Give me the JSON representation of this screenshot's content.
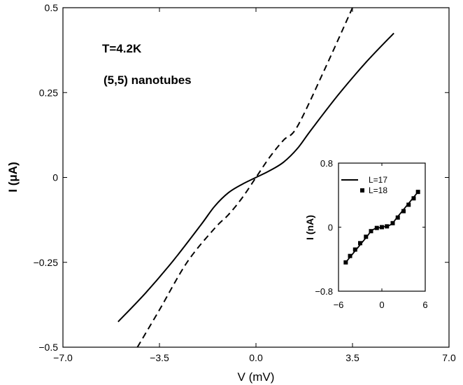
{
  "chart_data": [
    {
      "type": "line",
      "title": "",
      "xlabel": "V (mV)",
      "ylabel": "I (μA)",
      "xlim": [
        -7.0,
        7.0
      ],
      "ylim": [
        -0.5,
        0.5
      ],
      "xticks": [
        "−7.0",
        "−3.5",
        "0.0",
        "3.5",
        "7.0"
      ],
      "xtick_values": [
        -7.0,
        -3.5,
        0.0,
        3.5,
        7.0
      ],
      "yticks": [
        "−0.5",
        "−0.25",
        "0",
        "0.25",
        "0.5"
      ],
      "ytick_values": [
        -0.5,
        -0.25,
        0,
        0.25,
        0.5
      ],
      "grid": false,
      "annotations": [
        "T=4.2K",
        "(5,5) nanotubes"
      ],
      "series": [
        {
          "style": "solid",
          "x": [
            -5.0,
            -4.0,
            -3.0,
            -2.0,
            -1.5,
            -1.0,
            -0.5,
            0.0,
            0.5,
            1.0,
            1.5,
            2.0,
            3.0,
            4.0,
            5.0
          ],
          "y": [
            -0.425,
            -0.34,
            -0.245,
            -0.14,
            -0.085,
            -0.045,
            -0.02,
            0.0,
            0.02,
            0.045,
            0.085,
            0.14,
            0.245,
            0.34,
            0.425
          ]
        },
        {
          "style": "dashed",
          "x": [
            -4.3,
            -3.5,
            -2.5,
            -1.5,
            -1.0,
            -0.5,
            0.0,
            0.5,
            1.0,
            1.5,
            2.5,
            3.5
          ],
          "y": [
            -0.5,
            -0.39,
            -0.25,
            -0.15,
            -0.11,
            -0.06,
            0.0,
            0.06,
            0.11,
            0.15,
            0.32,
            0.5
          ]
        }
      ]
    },
    {
      "type": "line",
      "title": "",
      "xlabel": "",
      "ylabel": "I (nA)",
      "xlim": [
        -6,
        6
      ],
      "ylim": [
        -0.8,
        0.8
      ],
      "xticks": [
        "−6",
        "0",
        "6"
      ],
      "xtick_values": [
        -6,
        0,
        6
      ],
      "yticks": [
        "−0.8",
        "0",
        "0.8"
      ],
      "ytick_values": [
        -0.8,
        0,
        0.8
      ],
      "legend_position": "top-left",
      "series": [
        {
          "name": "L=17",
          "style": "solid",
          "x": [
            -5.0,
            -4.0,
            -3.0,
            -2.0,
            -1.5,
            -1.0,
            -0.5,
            0.0,
            0.5,
            1.0,
            1.5,
            2.0,
            3.0,
            4.0,
            5.0
          ],
          "y": [
            -0.44,
            -0.33,
            -0.22,
            -0.11,
            -0.05,
            -0.02,
            -0.01,
            0.0,
            0.01,
            0.02,
            0.05,
            0.11,
            0.22,
            0.33,
            0.44
          ]
        },
        {
          "name": "L=18",
          "style": "markers",
          "x": [
            -5.0,
            -4.4,
            -3.7,
            -3.0,
            -2.2,
            -1.5,
            -0.7,
            0.0,
            0.7,
            1.5,
            2.2,
            3.0,
            3.7,
            4.4,
            5.0
          ],
          "y": [
            -0.44,
            -0.36,
            -0.28,
            -0.2,
            -0.12,
            -0.05,
            -0.01,
            0.0,
            0.01,
            0.05,
            0.12,
            0.2,
            0.28,
            0.36,
            0.44
          ]
        }
      ]
    }
  ]
}
